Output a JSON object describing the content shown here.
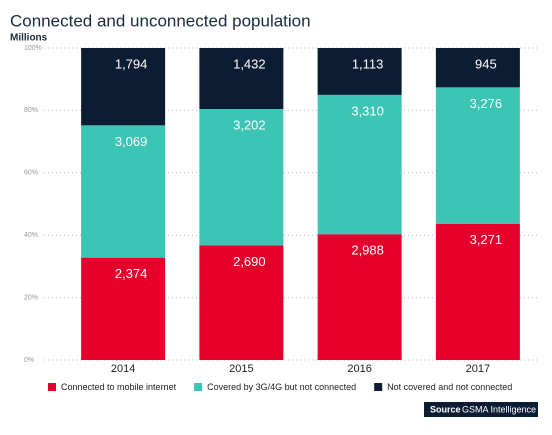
{
  "chart_data": {
    "type": "bar",
    "stack": "percent",
    "title": "Connected and unconnected population",
    "subtitle": "Millions",
    "categories": [
      "2014",
      "2015",
      "2016",
      "2017"
    ],
    "series": [
      {
        "name": "Connected to mobile internet",
        "color": "#e4002b",
        "values": [
          2374,
          2690,
          2988,
          3271
        ],
        "value_labels": [
          "2,374",
          "2,690",
          "2,988",
          "3,271"
        ]
      },
      {
        "name": "Covered by 3G/4G but not connected",
        "color": "#3cc4b4",
        "values": [
          3069,
          3202,
          3310,
          3276
        ],
        "value_labels": [
          "3,069",
          "3,202",
          "3,310",
          "3,276"
        ]
      },
      {
        "name": "Not covered and not connected",
        "color": "#0c1c33",
        "values": [
          1794,
          1432,
          1113,
          945
        ],
        "value_labels": [
          "1,794",
          "1,432",
          "1,113",
          "945"
        ]
      }
    ],
    "ylim": [
      0,
      100
    ],
    "yticks": [
      {
        "value": 0,
        "label": "0%"
      },
      {
        "value": 20,
        "label": "20%"
      },
      {
        "value": 40,
        "label": "40%"
      },
      {
        "value": 60,
        "label": "60%"
      },
      {
        "value": 80,
        "label": "80%"
      },
      {
        "value": 100,
        "label": "100%"
      }
    ],
    "grid": true,
    "source_label": "Source",
    "source": "GSMA Intelligence"
  }
}
